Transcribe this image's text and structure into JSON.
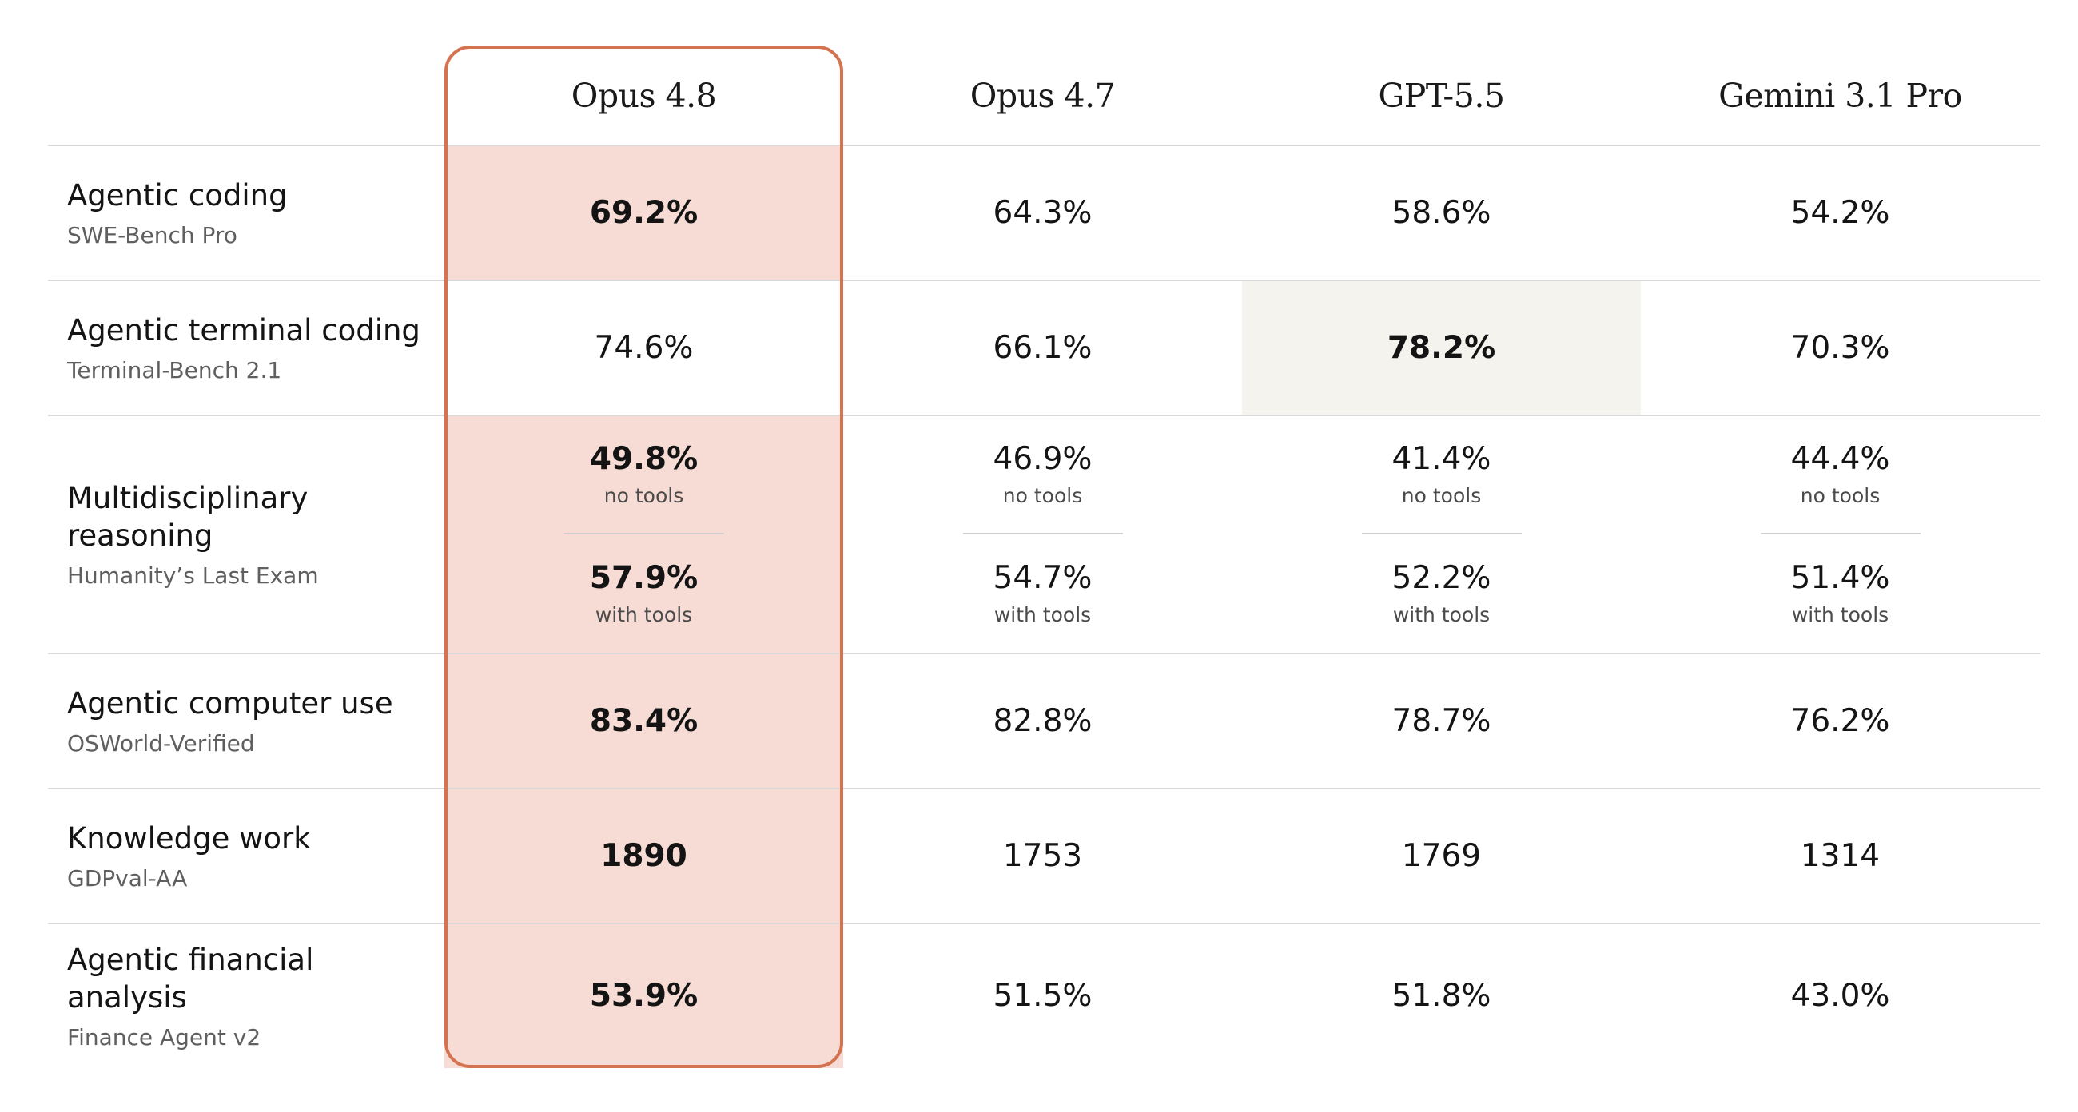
{
  "chart_data": {
    "type": "table",
    "columns": [
      "Opus 4.8",
      "Opus 4.7",
      "GPT-5.5",
      "Gemini 3.1 Pro"
    ],
    "highlight_column": "Opus 4.8",
    "rows": [
      {
        "name": [
          "Agentic coding"
        ],
        "benchmark": "SWE-Bench Pro",
        "values": [
          "69.2%",
          "64.3%",
          "58.6%",
          "54.2%"
        ],
        "best": 0
      },
      {
        "name": [
          "Agentic terminal coding"
        ],
        "benchmark": "Terminal-Bench 2.1",
        "values": [
          "74.6%",
          "66.1%",
          "78.2%",
          "70.3%"
        ],
        "best": 2
      },
      {
        "name": [
          "Multidisciplinary",
          "reasoning"
        ],
        "benchmark": "Humanity’s Last Exam",
        "values": [
          {
            "no_tools": "49.8%",
            "with_tools": "57.9%"
          },
          {
            "no_tools": "46.9%",
            "with_tools": "54.7%"
          },
          {
            "no_tools": "41.4%",
            "with_tools": "52.2%"
          },
          {
            "no_tools": "44.4%",
            "with_tools": "51.4%"
          }
        ],
        "best": 0,
        "captions": {
          "no_tools": "no tools",
          "with_tools": "with tools"
        }
      },
      {
        "name": [
          "Agentic computer use"
        ],
        "benchmark": "OSWorld-Verified",
        "values": [
          "83.4%",
          "82.8%",
          "78.7%",
          "76.2%"
        ],
        "best": 0
      },
      {
        "name": [
          "Knowledge work"
        ],
        "benchmark": "GDPval-AA",
        "values": [
          "1890",
          "1753",
          "1769",
          "1314"
        ],
        "best": 0
      },
      {
        "name": [
          "Agentic financial",
          "analysis"
        ],
        "benchmark": "Finance Agent v2",
        "values": [
          "53.9%",
          "51.5%",
          "51.8%",
          "43.0%"
        ],
        "best": 0
      }
    ],
    "colors": {
      "highlight_fill": "#f6dcd5",
      "highlight_border": "#d3734f",
      "alt_best_fill": "#f4f3ee"
    }
  }
}
